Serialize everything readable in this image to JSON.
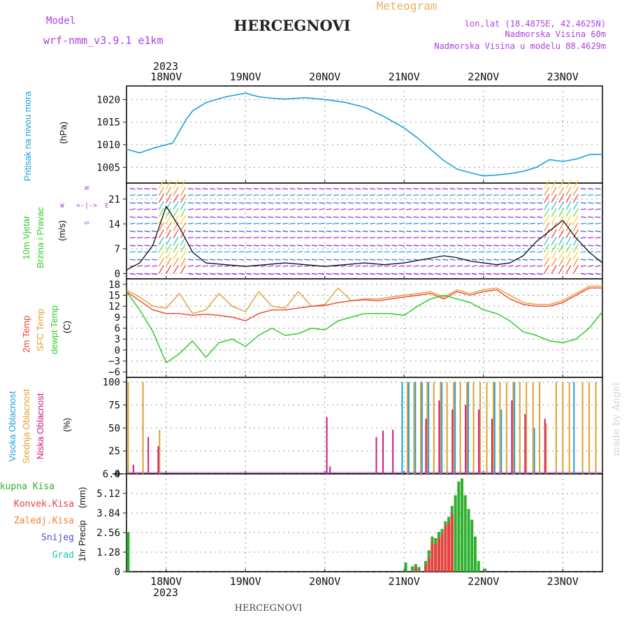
{
  "header": {
    "model_label": "Model",
    "model_name": "wrf-nmm_v3.9.1 e1km",
    "station": "HERCEGNOVI",
    "meteogram": "Meteogram",
    "coords": "lon,lat (18.4875E, 42.4625N)",
    "elevation": "Nadmorska Visina 60m",
    "model_elevation": "Nadmorska Visina u modelu 88.4629m",
    "footer_station": "HERCEGNOVI",
    "watermark": "made by Angel"
  },
  "time_axis": {
    "year": "2023",
    "labels": [
      "18NOV",
      "19NOV",
      "20NOV",
      "21NOV",
      "22NOV",
      "23NOV"
    ],
    "label_hours": [
      12,
      36,
      60,
      84,
      108,
      132
    ],
    "range_hours": [
      0,
      144
    ]
  },
  "colors": {
    "pressure": "#1ea0dc",
    "temp2m": "#f04030",
    "sfc_temp": "#e0a030",
    "dewpoint": "#2ecc2e",
    "high_cloud": "#1ea0dc",
    "mid_cloud": "#e0a030",
    "low_cloud": "#d01880",
    "total_precip": "#30b030",
    "convective_precip": "#e84040",
    "frozen_precip": "#f08030",
    "snow": "#5050e0",
    "hail": "#20c0c0",
    "label_purple": "#b040e0"
  },
  "chart_data": [
    {
      "type": "line",
      "panel": "pressure",
      "ylabel": "Pritisak na nivou mora",
      "unit": "(hPa)",
      "yticks": [
        1005,
        1010,
        1015,
        1020
      ],
      "ylim": [
        1001.5,
        1023
      ],
      "x": [
        0,
        4,
        8,
        12,
        14,
        16,
        18,
        20,
        24,
        30,
        36,
        40,
        44,
        48,
        54,
        60,
        66,
        72,
        78,
        84,
        88,
        92,
        96,
        100,
        104,
        108,
        112,
        116,
        120,
        124,
        128,
        132,
        136,
        140,
        144
      ],
      "series": [
        {
          "values": [
            1009,
            1008.2,
            1009.2,
            1010,
            1010.4,
            1013,
            1015.5,
            1017.5,
            1019.3,
            1020.6,
            1021.4,
            1020.6,
            1020.3,
            1020.1,
            1020.4,
            1020.0,
            1019.4,
            1018.3,
            1016.2,
            1013.7,
            1011.5,
            1009.0,
            1006.5,
            1004.6,
            1003.8,
            1003.1,
            1003.3,
            1003.6,
            1004.1,
            1005.0,
            1006.7,
            1006.3,
            1006.8,
            1007.8,
            1007.9
          ]
        }
      ]
    },
    {
      "type": "line",
      "panel": "wind",
      "ylabel": "10m Vjetar Brzina i Pravac",
      "unit": "(m/s)",
      "compass": [
        "N",
        "E",
        "S",
        "W"
      ],
      "yticks": [
        0,
        7,
        14,
        21
      ],
      "ylim": [
        -1.5,
        25.5
      ],
      "x": [
        0,
        4,
        8,
        12,
        16,
        20,
        24,
        30,
        36,
        42,
        48,
        54,
        60,
        66,
        72,
        78,
        84,
        90,
        96,
        100,
        104,
        108,
        112,
        116,
        120,
        124,
        128,
        132,
        136,
        140,
        144
      ],
      "series": [
        {
          "name": "speed",
          "values": [
            1,
            3,
            8,
            19,
            13,
            6,
            3,
            2.5,
            2,
            2.5,
            3,
            2.5,
            2,
            2.5,
            3,
            2.5,
            3,
            4,
            5,
            4.5,
            3.5,
            3,
            2.5,
            3,
            5,
            9,
            12,
            15,
            10,
            6,
            3
          ]
        }
      ]
    },
    {
      "type": "line",
      "panel": "temperature",
      "ylabel": [
        "2m Temp",
        "SFC Temp",
        "dewpt Temp"
      ],
      "unit": "(C)",
      "yticks": [
        -6,
        -3,
        0,
        3,
        6,
        9,
        12,
        15,
        18
      ],
      "ylim": [
        -7.5,
        19.5
      ],
      "x": [
        0,
        4,
        8,
        12,
        16,
        20,
        24,
        28,
        32,
        36,
        40,
        44,
        48,
        52,
        56,
        60,
        64,
        68,
        72,
        76,
        80,
        84,
        88,
        92,
        96,
        100,
        104,
        108,
        112,
        116,
        120,
        124,
        128,
        132,
        136,
        140,
        144
      ],
      "series": [
        {
          "name": "2m Temp",
          "values": [
            16,
            13.5,
            11,
            10,
            10,
            9.5,
            9.8,
            9.5,
            9,
            8,
            10,
            11,
            11,
            11.5,
            12,
            12.2,
            13,
            13.5,
            13.8,
            13.5,
            14,
            14.5,
            15,
            15.5,
            14,
            16,
            15,
            16,
            16.5,
            14,
            12.5,
            12,
            12,
            13,
            15,
            17,
            17
          ]
        },
        {
          "name": "SFC Temp",
          "values": [
            16.5,
            14.5,
            12,
            11.5,
            15.5,
            10,
            11,
            15.5,
            12,
            10.5,
            16,
            12,
            11.5,
            16,
            12,
            12.5,
            17,
            13.5,
            14,
            14,
            14.5,
            15,
            15.5,
            16,
            14.5,
            16.5,
            15.5,
            16.5,
            17,
            15,
            13,
            12.5,
            12.5,
            13.5,
            15.5,
            17.5,
            17.5
          ]
        },
        {
          "name": "dewpt Temp",
          "values": [
            16,
            11,
            5,
            -3.5,
            -1,
            2.5,
            -2,
            2,
            3,
            1,
            4,
            6,
            4,
            4.5,
            6,
            5.5,
            8,
            9,
            10,
            10,
            10,
            9.5,
            12,
            14,
            15,
            14,
            13,
            11,
            10,
            8,
            5,
            4,
            2.5,
            2,
            3,
            6,
            10.5
          ]
        }
      ]
    },
    {
      "type": "bar",
      "panel": "clouds",
      "ylabel": [
        "Visoka Oblacnost",
        "Srednja Oblacnost",
        "Niska Oblacnost"
      ],
      "unit": "(%)",
      "yticks": [
        0,
        25,
        50,
        75,
        100
      ],
      "ylim": [
        0,
        105
      ],
      "series": [
        {
          "name": "Visoka Oblacnost",
          "x": [
            1,
            84,
            86,
            88,
            90,
            92,
            96,
            100,
            104,
            112,
            114,
            118,
            124,
            136
          ],
          "values": [
            3,
            100,
            100,
            100,
            100,
            100,
            100,
            100,
            100,
            100,
            70,
            100,
            50,
            100
          ]
        },
        {
          "name": "Srednja Oblacnost",
          "x": [
            0.5,
            3,
            5,
            10,
            85,
            87,
            89,
            91,
            93,
            95,
            97,
            99,
            101,
            103,
            105,
            107,
            109,
            111,
            113,
            115,
            117,
            119,
            121,
            123,
            125,
            127,
            130,
            132,
            134,
            138,
            140,
            142
          ],
          "values": [
            100,
            2,
            100,
            48,
            100,
            100,
            100,
            100,
            100,
            100,
            100,
            100,
            100,
            100,
            100,
            100,
            100,
            100,
            100,
            100,
            100,
            100,
            100,
            100,
            100,
            55,
            100,
            100,
            100,
            100,
            100,
            100
          ]
        },
        {
          "name": "Niska Oblacnost",
          "x": [
            1.5,
            6,
            9,
            60,
            61,
            75,
            77,
            80,
            90,
            94,
            98,
            102,
            106,
            110,
            116,
            120,
            126
          ],
          "values": [
            10,
            40,
            30,
            62,
            8,
            40,
            47,
            48,
            60,
            80,
            70,
            75,
            70,
            60,
            80,
            65,
            60
          ]
        }
      ]
    },
    {
      "type": "bar",
      "panel": "precipitation",
      "ylabel": "1hr Precip",
      "unit": "(mm)",
      "yticks": [
        0,
        1.28,
        2.56,
        3.84,
        5.12,
        6.4
      ],
      "ylim": [
        0,
        6.4
      ],
      "legend": [
        "Ukupna Kisa",
        "Konvek.Kisa",
        "Zaledj.Kisa",
        "Snijeg",
        "Grad"
      ],
      "series": [
        {
          "name": "Ukupna Kisa",
          "x": [
            0,
            84,
            86,
            87,
            88,
            90,
            91,
            92,
            93,
            94,
            95,
            96,
            97,
            98,
            99,
            100,
            101,
            102,
            103,
            104,
            105,
            106,
            108
          ],
          "values": [
            2.6,
            0.6,
            0.35,
            0.5,
            0.3,
            0.7,
            1.4,
            2.3,
            2.2,
            2.6,
            2.8,
            3.3,
            3.6,
            4.3,
            5.0,
            5.9,
            6.1,
            5.0,
            4.1,
            3.4,
            2.3,
            0.7,
            0.2
          ]
        },
        {
          "name": "Konvek.Kisa",
          "x": [
            87,
            90,
            91,
            92,
            93,
            94,
            95,
            96,
            97,
            98
          ],
          "values": [
            0.3,
            0.4,
            0.9,
            1.9,
            1.8,
            2.2,
            2.5,
            3.0,
            3.2,
            3.8
          ]
        }
      ]
    }
  ]
}
